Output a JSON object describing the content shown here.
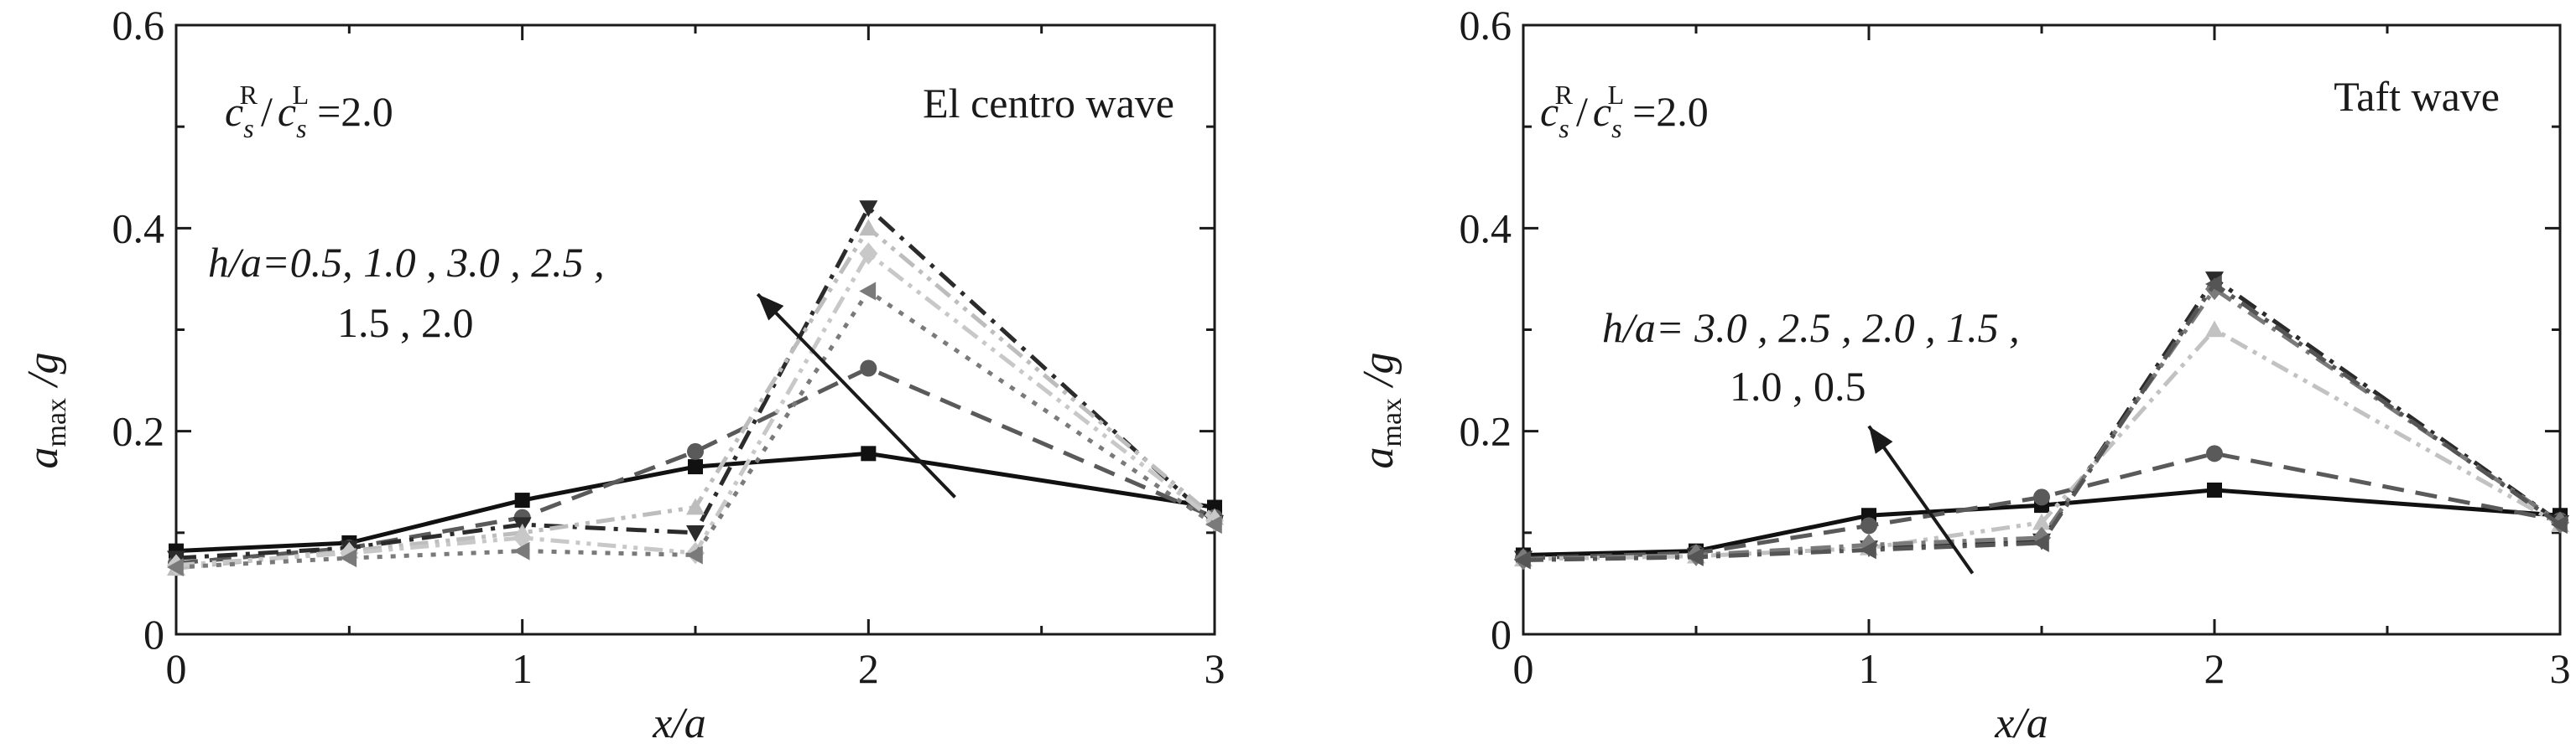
{
  "figure": {
    "colors": {
      "axis": "#1a1a1a",
      "series": [
        "#111111",
        "#4d4d4d",
        "#262626",
        "#9e9e9e",
        "#6a6a6a",
        "#7a7a7a",
        "#c2c2c2",
        "#b0b0b0"
      ]
    }
  },
  "chart_data": [
    {
      "type": "line",
      "title": "El  centro wave",
      "ratio_label": {
        "c": "c",
        "s": "s",
        "R": "R",
        "slash": "/",
        "L": "L",
        "value": "=2.0"
      },
      "xlabel": "x/a",
      "ylabel": {
        "a": "a",
        "sub": "max",
        "rest": "/g"
      },
      "xlim": [
        0,
        3
      ],
      "ylim": [
        0,
        0.6
      ],
      "xticks": [
        "0",
        "1",
        "2",
        "3"
      ],
      "yticks": [
        "0",
        "0.2",
        "0.4",
        "0.6"
      ],
      "annotation": {
        "line1": "h/a=0.5, 1.0 , 3.0 , 2.5 ,",
        "line2": "1.5 , 2.0"
      },
      "arrow": {
        "from": [
          2.25,
          0.135
        ],
        "to": [
          1.68,
          0.335
        ]
      },
      "x": [
        0,
        0.5,
        1,
        1.5,
        2,
        3
      ],
      "series": [
        {
          "values": [
            0.082,
            0.09,
            0.132,
            0.165,
            0.178,
            0.125
          ],
          "marker": "square",
          "dash": "solid",
          "color": "#111111"
        },
        {
          "values": [
            0.07,
            0.085,
            0.115,
            0.18,
            0.262,
            0.115
          ],
          "marker": "circle",
          "dash": "dash",
          "color": "#5a5a5a"
        },
        {
          "values": [
            0.075,
            0.085,
            0.108,
            0.1,
            0.42,
            0.11
          ],
          "marker": "triangle-down",
          "dash": "dashdot",
          "color": "#2b2b2b"
        },
        {
          "values": [
            0.065,
            0.082,
            0.1,
            0.125,
            0.4,
            0.115
          ],
          "marker": "triangle-up",
          "dash": "dashdotdot",
          "color": "#bdbdbd"
        },
        {
          "values": [
            0.068,
            0.08,
            0.095,
            0.08,
            0.375,
            0.112
          ],
          "marker": "diamond",
          "dash": "dashdotdot",
          "color": "#c8c8c8"
        },
        {
          "values": [
            0.066,
            0.075,
            0.082,
            0.078,
            0.338,
            0.108
          ],
          "marker": "triangle-left",
          "dash": "dot",
          "color": "#7a7a7a"
        }
      ]
    },
    {
      "type": "line",
      "title": "Taft wave",
      "ratio_label": {
        "c": "c",
        "s": "s",
        "R": "R",
        "slash": "/",
        "L": "L",
        "value": "=2.0"
      },
      "xlabel": "x/a",
      "ylabel": {
        "a": "a",
        "sub": "max",
        "rest": "/g"
      },
      "xlim": [
        0,
        3
      ],
      "ylim": [
        0,
        0.6
      ],
      "xticks": [
        "0",
        "1",
        "2",
        "3"
      ],
      "yticks": [
        "0",
        "0.2",
        "0.4",
        "0.6"
      ],
      "annotation": {
        "line1": "h/a= 3.0 , 2.5 , 2.0 , 1.5 ,",
        "line2": "1.0 , 0.5"
      },
      "arrow": {
        "from": [
          1.3,
          0.06
        ],
        "to": [
          1.0,
          0.205
        ]
      },
      "x": [
        0,
        0.5,
        1,
        1.5,
        2,
        3
      ],
      "series": [
        {
          "values": [
            0.078,
            0.082,
            0.117,
            0.127,
            0.142,
            0.117
          ],
          "marker": "square",
          "dash": "solid",
          "color": "#111111"
        },
        {
          "values": [
            0.075,
            0.08,
            0.107,
            0.135,
            0.178,
            0.112
          ],
          "marker": "circle",
          "dash": "dash",
          "color": "#5a5a5a"
        },
        {
          "values": [
            0.075,
            0.078,
            0.085,
            0.092,
            0.35,
            0.11
          ],
          "marker": "triangle-down",
          "dash": "dashdot",
          "color": "#2b2b2b"
        },
        {
          "values": [
            0.074,
            0.077,
            0.085,
            0.11,
            0.3,
            0.108
          ],
          "marker": "triangle-up",
          "dash": "dashdotdot",
          "color": "#c2c2c2"
        },
        {
          "values": [
            0.074,
            0.078,
            0.088,
            0.095,
            0.34,
            0.11
          ],
          "marker": "diamond",
          "dash": "dashdot",
          "color": "#7a7a7a"
        },
        {
          "values": [
            0.073,
            0.076,
            0.083,
            0.09,
            0.345,
            0.108
          ],
          "marker": "triangle-left",
          "dash": "dashdot",
          "color": "#555555"
        }
      ]
    }
  ]
}
